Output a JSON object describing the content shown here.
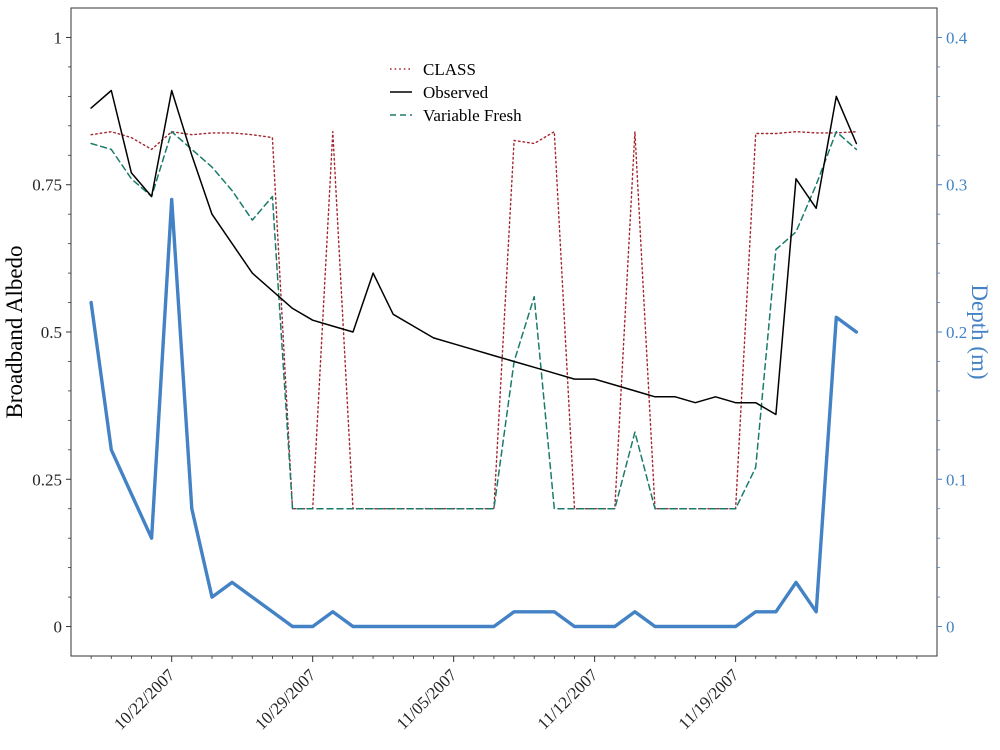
{
  "chart_data": {
    "type": "line",
    "ylabel": "Broadband Albedo",
    "y2label": "Depth (m)",
    "xlabel": "",
    "ylim": [
      -0.05,
      1.05
    ],
    "y2lim": [
      -0.02,
      0.42
    ],
    "y_ticks": [
      0,
      0.25,
      0.5,
      0.75,
      1
    ],
    "y_tick_labels": [
      "0",
      "0.25",
      "0.5",
      "0.75",
      "1"
    ],
    "y2_ticks": [
      0,
      0.1,
      0.2,
      0.3,
      0.4
    ],
    "y2_tick_labels": [
      "0",
      "0.1",
      "0.2",
      "0.3",
      "0.4"
    ],
    "x_range": [
      "2007-10-17",
      "2007-11-29"
    ],
    "x_tick_dates": [
      "2007-10-22",
      "2007-10-29",
      "2007-11-05",
      "2007-11-12",
      "2007-11-19"
    ],
    "x_tick_labels": [
      "10/22/2007",
      "10/29/2007",
      "11/05/2007",
      "11/12/2007",
      "11/19/2007"
    ],
    "legend": {
      "position": "top-center"
    },
    "grid": false,
    "colors": {
      "CLASS": "#a3262f",
      "Observed": "#000000",
      "Variable Fresh": "#1b7b6b",
      "Depth": "#4382c4",
      "right_axis": "#4382c4"
    },
    "x": [
      "2007-10-18",
      "2007-10-19",
      "2007-10-20",
      "2007-10-21",
      "2007-10-22",
      "2007-10-23",
      "2007-10-24",
      "2007-10-25",
      "2007-10-26",
      "2007-10-27",
      "2007-10-28",
      "2007-10-29",
      "2007-10-30",
      "2007-10-31",
      "2007-11-01",
      "2007-11-02",
      "2007-11-03",
      "2007-11-04",
      "2007-11-05",
      "2007-11-06",
      "2007-11-07",
      "2007-11-08",
      "2007-11-09",
      "2007-11-10",
      "2007-11-11",
      "2007-11-12",
      "2007-11-13",
      "2007-11-14",
      "2007-11-15",
      "2007-11-16",
      "2007-11-17",
      "2007-11-18",
      "2007-11-19",
      "2007-11-20",
      "2007-11-21",
      "2007-11-22",
      "2007-11-23",
      "2007-11-24",
      "2007-11-25"
    ],
    "series": [
      {
        "name": "CLASS",
        "axis": "left",
        "style": "dotted",
        "values": [
          0.835,
          0.84,
          0.83,
          0.81,
          0.84,
          0.835,
          0.838,
          0.838,
          0.835,
          0.83,
          0.2,
          0.2,
          0.84,
          0.2,
          0.2,
          0.2,
          0.2,
          0.2,
          0.2,
          0.2,
          0.2,
          0.825,
          0.82,
          0.84,
          0.2,
          0.2,
          0.2,
          0.84,
          0.2,
          0.2,
          0.2,
          0.2,
          0.2,
          0.837,
          0.837,
          0.84,
          0.838,
          0.838,
          0.84
        ]
      },
      {
        "name": "Observed",
        "axis": "left",
        "style": "solid",
        "values": [
          0.88,
          0.91,
          0.77,
          0.73,
          0.91,
          0.8,
          0.7,
          0.65,
          0.6,
          0.57,
          0.54,
          0.52,
          0.51,
          0.5,
          0.6,
          0.53,
          0.51,
          0.49,
          0.48,
          0.47,
          0.46,
          0.45,
          0.44,
          0.43,
          0.42,
          0.42,
          0.41,
          0.4,
          0.39,
          0.39,
          0.38,
          0.39,
          0.38,
          0.38,
          0.36,
          0.76,
          0.71,
          0.9,
          0.82
        ]
      },
      {
        "name": "Variable Fresh",
        "axis": "left",
        "style": "dashed",
        "values": [
          0.82,
          0.81,
          0.76,
          0.73,
          0.84,
          0.81,
          0.78,
          0.74,
          0.69,
          0.73,
          0.2,
          0.2,
          0.2,
          0.2,
          0.2,
          0.2,
          0.2,
          0.2,
          0.2,
          0.2,
          0.2,
          0.45,
          0.56,
          0.2,
          0.2,
          0.2,
          0.2,
          0.33,
          0.2,
          0.2,
          0.2,
          0.2,
          0.2,
          0.27,
          0.64,
          0.67,
          0.75,
          0.84,
          0.81
        ]
      },
      {
        "name": "Depth",
        "axis": "right",
        "style": "thick",
        "values": [
          0.22,
          0.12,
          0.09,
          0.06,
          0.29,
          0.08,
          0.02,
          0.03,
          0.02,
          0.01,
          0.0,
          0.0,
          0.01,
          0.0,
          0.0,
          0.0,
          0.0,
          0.0,
          0.0,
          0.0,
          0.0,
          0.01,
          0.01,
          0.01,
          0.0,
          0.0,
          0.0,
          0.01,
          0.0,
          0.0,
          0.0,
          0.0,
          0.0,
          0.01,
          0.01,
          0.03,
          0.01,
          0.21,
          0.2
        ]
      }
    ]
  }
}
